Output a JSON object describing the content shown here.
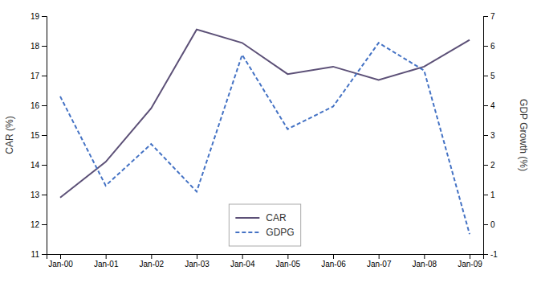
{
  "chart_data": {
    "type": "line",
    "categories": [
      "Jan-00",
      "Jan-01",
      "Jan-02",
      "Jan-03",
      "Jan-04",
      "Jan-05",
      "Jan-06",
      "Jan-07",
      "Jan-08",
      "Jan-09"
    ],
    "series": [
      {
        "name": "CAR",
        "color": "#5c5077",
        "line_style": "solid",
        "values": [
          12.9,
          14.1,
          15.9,
          18.55,
          18.1,
          17.05,
          17.3,
          16.85,
          17.3,
          18.2
        ]
      },
      {
        "name": "GDPG",
        "color": "#4472c4",
        "line_style": "dashed",
        "axis": "y2",
        "values": [
          4.3,
          1.3,
          2.7,
          1.1,
          5.7,
          3.2,
          3.96,
          6.1,
          5.17,
          -0.33
        ]
      }
    ],
    "ylabel": "CAR (%)",
    "y2label": "GDP  Growth (%)",
    "ylim": [
      11,
      19
    ],
    "yticks": [
      11,
      12,
      13,
      14,
      15,
      16,
      17,
      18,
      19
    ],
    "y2lim": [
      -1,
      7
    ],
    "y2ticks": [
      -1,
      0,
      1,
      2,
      3,
      4,
      5,
      6,
      7
    ],
    "grid": false,
    "legend": "lower center"
  }
}
